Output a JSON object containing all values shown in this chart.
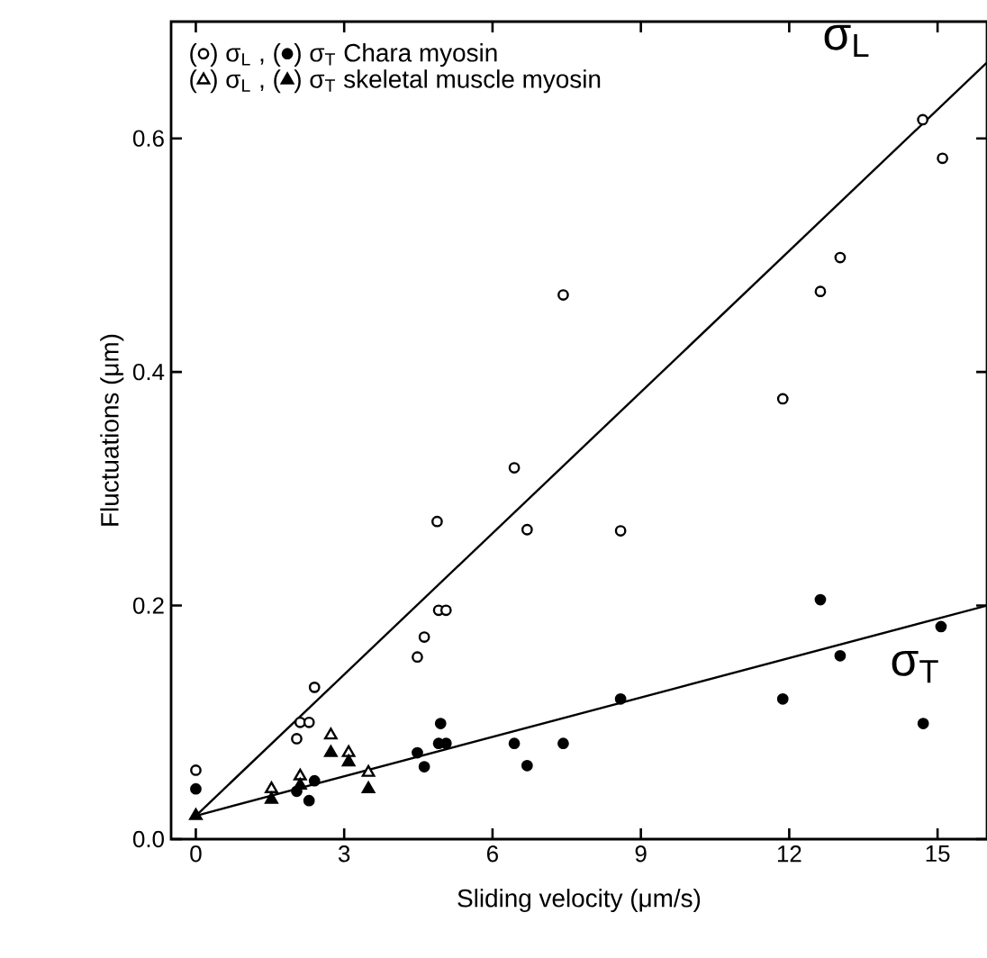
{
  "chart_data": {
    "type": "scatter",
    "xlabel": "Sliding velocity (μm/s)",
    "ylabel": "Fluctuations (μm)",
    "xlim": [
      -0.5,
      16
    ],
    "ylim": [
      0,
      0.7
    ],
    "xticks": [
      0,
      3,
      6,
      9,
      12,
      15
    ],
    "yticks": [
      {
        "value": 0,
        "label": "0.0"
      },
      {
        "value": 0.2,
        "label": "0.2"
      },
      {
        "value": 0.4,
        "label": "0.4"
      },
      {
        "value": 0.6,
        "label": "0.6"
      }
    ],
    "legend": "top left",
    "annotations": [
      "σ$_{L}$",
      "σ$_{T}$",
      "(",
      "("
    ],
    "series": [
      {
        "name": ") σ$_{L}$ , (",
        "marker": "circle",
        "color": "#ffffff",
        "x": [
          0,
          2.04,
          2.11,
          2.29,
          2.4,
          4.48,
          4.62,
          4.91,
          5.06,
          4.88,
          6.44,
          6.7,
          7.43,
          8.59,
          11.87,
          12.63,
          13.03,
          14.7,
          15.1
        ],
        "values": [
          0.059,
          0.086,
          0.1,
          0.1,
          0.13,
          0.156,
          0.173,
          0.196,
          0.196,
          0.272,
          0.318,
          0.265,
          0.466,
          0.264,
          0.377,
          0.469,
          0.498,
          0.616,
          0.583
        ]
      },
      {
        "name": ") σ$_{T}$ Chara  myosin",
        "marker": "circle",
        "color": "#000000",
        "x": [
          0,
          2.04,
          2.29,
          2.4,
          4.48,
          4.62,
          4.95,
          4.91,
          5.06,
          6.44,
          6.7,
          7.43,
          8.59,
          11.87,
          12.63,
          13.03,
          14.71,
          15.07
        ],
        "values": [
          0.043,
          0.041,
          0.033,
          0.05,
          0.074,
          0.062,
          0.099,
          0.082,
          0.082,
          0.082,
          0.063,
          0.082,
          0.12,
          0.12,
          0.205,
          0.157,
          0.099,
          0.182
        ]
      },
      {
        "name": ") σ$_{L}$ , (",
        "marker": "triangle",
        "color": "#ffffff",
        "x": [
          1.53,
          2.11,
          2.73,
          3.09,
          3.49
        ],
        "values": [
          0.043,
          0.054,
          0.089,
          0.074,
          0.057
        ]
      },
      {
        "name": ") σ$_{T}$ skeletal muscle myosin",
        "marker": "triangle",
        "color": "#000000",
        "x": [
          0,
          1.53,
          2.11,
          2.73,
          3.09,
          3.49
        ],
        "values": [
          0.02,
          0.034,
          0.046,
          0.074,
          0.066,
          0.043
        ]
      },
      {
        "type": "line",
        "marker": "none",
        "line_style": "solid",
        "color": "#000000",
        "x": [
          0,
          16
        ],
        "values": [
          0.02,
          0.665
        ]
      },
      {
        "type": "line",
        "marker": "none",
        "line_style": "solid",
        "color": "#000000",
        "x": [
          0,
          16
        ],
        "values": [
          0.02,
          0.2
        ]
      }
    ]
  }
}
